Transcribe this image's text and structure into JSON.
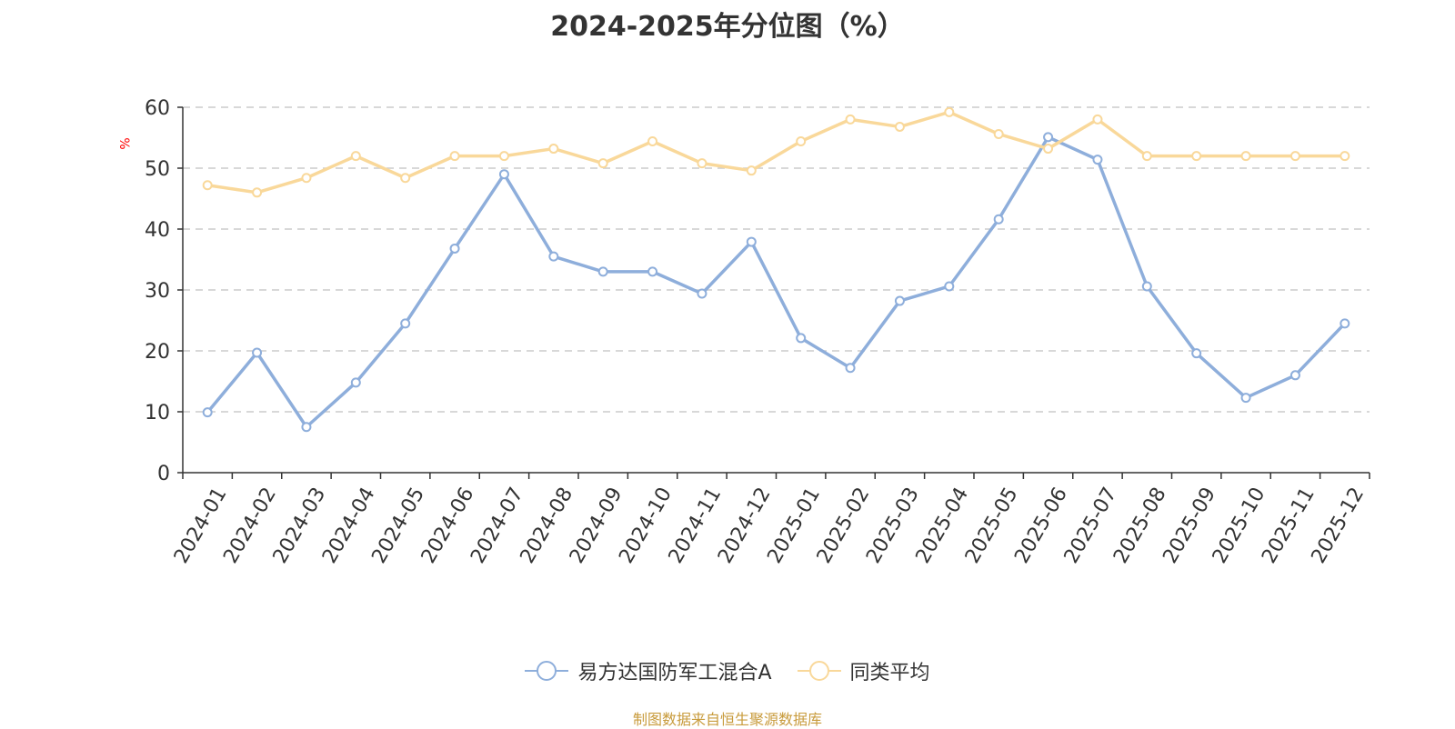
{
  "chart_data": {
    "type": "line",
    "title": "2024-2025年分位图（%）",
    "ylabel": "%",
    "xlabel": "",
    "ylim": [
      0,
      60
    ],
    "yticks": [
      0,
      10,
      20,
      30,
      40,
      50,
      60
    ],
    "grid": true,
    "legend_position": "bottom-center",
    "categories": [
      "2024-01",
      "2024-02",
      "2024-03",
      "2024-04",
      "2024-05",
      "2024-06",
      "2024-07",
      "2024-08",
      "2024-09",
      "2024-10",
      "2024-11",
      "2024-12",
      "2025-01",
      "2025-02",
      "2025-03",
      "2025-04",
      "2025-05",
      "2025-06",
      "2025-07",
      "2025-08",
      "2025-09",
      "2025-10",
      "2025-11",
      "2025-12"
    ],
    "series": [
      {
        "name": "易方达国防军工混合A",
        "color": "#8eaedb",
        "values": [
          9.9,
          19.7,
          7.5,
          14.8,
          24.5,
          36.8,
          49.0,
          35.5,
          33.0,
          33.0,
          29.4,
          37.9,
          22.1,
          17.2,
          28.2,
          30.6,
          41.6,
          55.1,
          51.4,
          30.6,
          19.6,
          12.3,
          16.0,
          24.5
        ]
      },
      {
        "name": "同类平均",
        "color": "#f9d89a",
        "values": [
          47.2,
          46.0,
          48.4,
          52.0,
          48.4,
          52.0,
          52.0,
          53.2,
          50.8,
          54.4,
          50.8,
          49.6,
          54.4,
          58.0,
          56.8,
          59.2,
          55.6,
          53.2,
          58.0,
          52.0,
          52.0,
          52.0,
          52.0,
          52.0
        ]
      }
    ]
  },
  "colors": {
    "axis": "#333333",
    "grid": "#cccccc",
    "unit_label": "#ff0000",
    "source_text": "#c89b3c"
  },
  "source_text": "制图数据来自恒生聚源数据库"
}
